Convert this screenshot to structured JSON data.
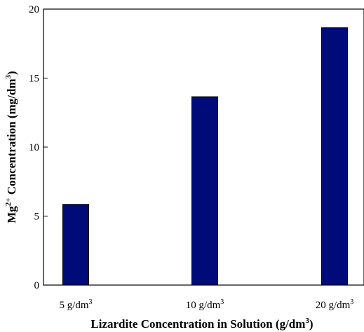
{
  "chart_data": {
    "type": "bar",
    "categories": [
      "5 g/dm",
      "10 g/dm",
      "20 g/dm"
    ],
    "category_superscripts": [
      "3",
      "3",
      "3"
    ],
    "values": [
      5.85,
      13.65,
      18.65
    ],
    "ylim": [
      0,
      20
    ],
    "yticks": [
      "0",
      "5",
      "10",
      "15",
      "20"
    ],
    "xlabel": {
      "main": "Lizardite Concentration in Solution (g/dm",
      "sup": "3",
      "tail": ")"
    },
    "ylabel": {
      "a": "Mg",
      "a_sup": "2+",
      "b": " Concentration (mg/dm",
      "b_sup": "3",
      "c": ")"
    },
    "bar_color": "#000b7a",
    "bar_edge": "#000000",
    "grid": false
  }
}
